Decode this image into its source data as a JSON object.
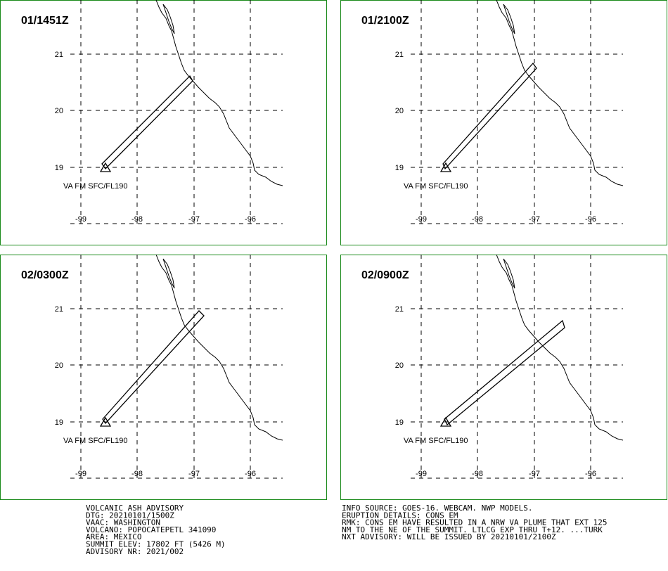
{
  "panels": [
    {
      "title": "01/1451Z",
      "layer": "VA FM SFC/FL190",
      "lat_labels": [
        "21",
        "20",
        "19"
      ],
      "lon_labels": [
        "-99",
        "-98",
        "-97",
        "-96"
      ]
    },
    {
      "title": "01/2100Z",
      "layer": "VA FM SFC/FL190",
      "lat_labels": [
        "21",
        "20",
        "19"
      ],
      "lon_labels": [
        "-99",
        "-98",
        "-97",
        "-96"
      ]
    },
    {
      "title": "02/0300Z",
      "layer": "VA FM SFC/FL190",
      "lat_labels": [
        "21",
        "20",
        "19"
      ],
      "lon_labels": [
        "-99",
        "-98",
        "-97",
        "-96"
      ]
    },
    {
      "title": "02/0900Z",
      "layer": "VA FM SFC/FL190",
      "lat_labels": [
        "21",
        "20",
        "19"
      ],
      "lon_labels": [
        "-99",
        "-98",
        "-97",
        "-96"
      ]
    }
  ],
  "advisory_left": [
    "VOLCANIC ASH ADVISORY",
    "DTG: 20210101/1500Z",
    "VAAC: WASHINGTON",
    "VOLCANO: POPOCATEPETL 341090",
    "AREA: MEXICO",
    "SUMMIT ELEV: 17802 FT (5426 M)",
    "ADVISORY NR: 2021/002"
  ],
  "advisory_right": [
    "INFO SOURCE: GOES-16. WEBCAM. NWP MODELS.",
    "ERUPTION DETAILS: CONS EM",
    "RMK: CONS EM HAVE RESULTED IN A NRW VA PLUME THAT EXT 125",
    "NM TO THE NE OF THE SUMMIT. LTLCG EXP THRU T+12. ...TURK",
    "NXT ADVISORY: WILL BE ISSUED BY 20210101/2100Z"
  ]
}
